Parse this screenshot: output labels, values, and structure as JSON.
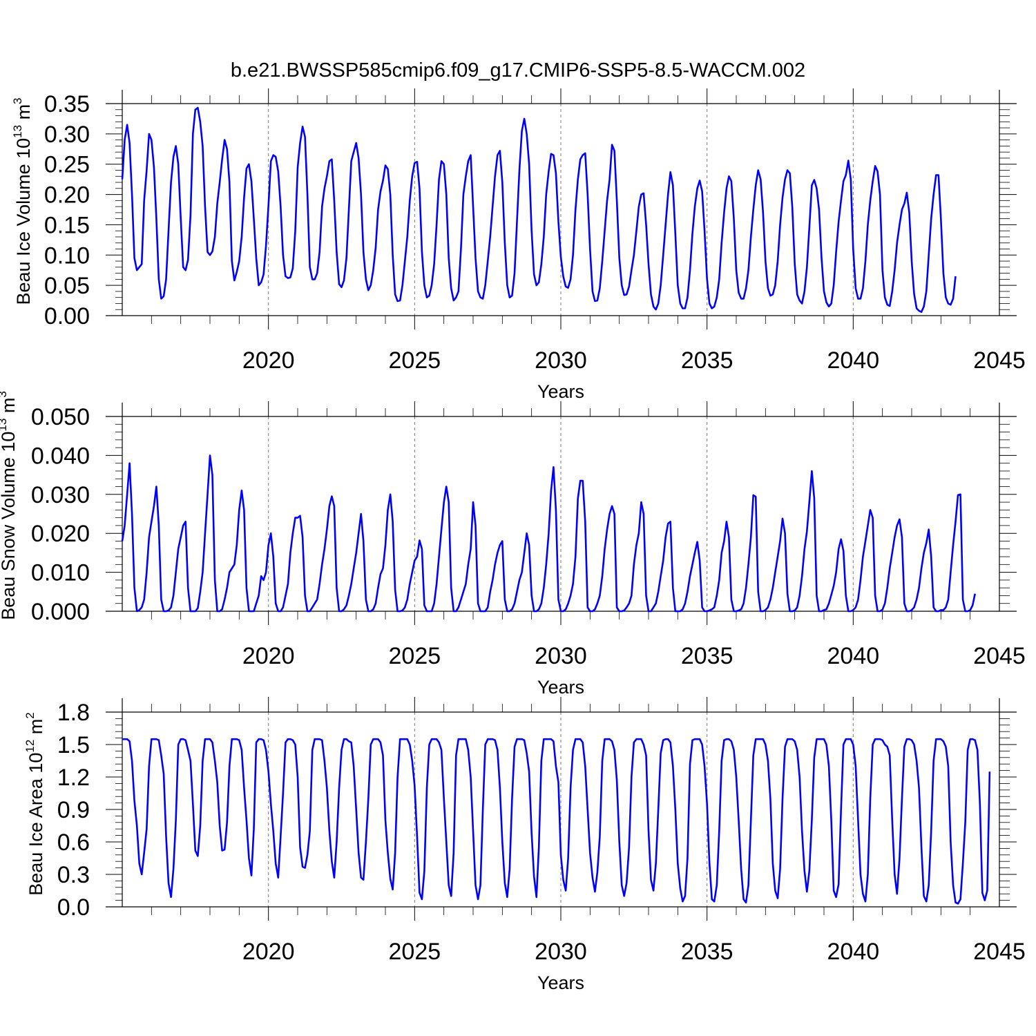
{
  "title": "b.e21.BWSSP585cmip6.f09_g17.CMIP6-SSP5-8.5-WACCM.002",
  "chart_data": [
    {
      "type": "line",
      "id": "ice-volume",
      "title": "",
      "xlabel": "Years",
      "ylabel": {
        "base": "Beau Ice Volume 10",
        "exp": "13",
        "unit": " m",
        "unit_exp": "3"
      },
      "xlim": [
        2015.0,
        2045.0
      ],
      "ylim": [
        0.0,
        0.35
      ],
      "x_ticks": [
        2020,
        2025,
        2030,
        2035,
        2040,
        2045
      ],
      "y_ticks": [
        "0.00",
        "0.05",
        "0.10",
        "0.15",
        "0.20",
        "0.25",
        "0.30",
        "0.35"
      ],
      "x_start": 2015.0,
      "x_step": 0.0833333,
      "values": [
        0.225,
        0.29,
        0.315,
        0.285,
        0.2,
        0.095,
        0.075,
        0.08,
        0.085,
        0.19,
        0.24,
        0.3,
        0.29,
        0.245,
        0.16,
        0.06,
        0.028,
        0.032,
        0.06,
        0.14,
        0.22,
        0.262,
        0.28,
        0.25,
        0.16,
        0.08,
        0.075,
        0.092,
        0.165,
        0.3,
        0.34,
        0.343,
        0.32,
        0.28,
        0.18,
        0.105,
        0.1,
        0.106,
        0.13,
        0.185,
        0.22,
        0.258,
        0.29,
        0.275,
        0.22,
        0.09,
        0.058,
        0.072,
        0.09,
        0.13,
        0.195,
        0.243,
        0.25,
        0.222,
        0.16,
        0.095,
        0.05,
        0.055,
        0.068,
        0.115,
        0.182,
        0.255,
        0.265,
        0.262,
        0.238,
        0.18,
        0.1,
        0.065,
        0.062,
        0.063,
        0.078,
        0.14,
        0.245,
        0.285,
        0.312,
        0.295,
        0.2,
        0.08,
        0.06,
        0.06,
        0.07,
        0.105,
        0.18,
        0.21,
        0.23,
        0.255,
        0.258,
        0.19,
        0.105,
        0.052,
        0.047,
        0.058,
        0.095,
        0.175,
        0.255,
        0.27,
        0.285,
        0.26,
        0.2,
        0.105,
        0.06,
        0.042,
        0.05,
        0.075,
        0.112,
        0.175,
        0.205,
        0.223,
        0.248,
        0.242,
        0.2,
        0.1,
        0.035,
        0.024,
        0.025,
        0.05,
        0.09,
        0.13,
        0.19,
        0.23,
        0.252,
        0.254,
        0.21,
        0.105,
        0.05,
        0.03,
        0.033,
        0.05,
        0.085,
        0.15,
        0.225,
        0.255,
        0.25,
        0.2,
        0.095,
        0.045,
        0.025,
        0.03,
        0.04,
        0.11,
        0.2,
        0.23,
        0.255,
        0.265,
        0.18,
        0.095,
        0.04,
        0.03,
        0.028,
        0.05,
        0.09,
        0.13,
        0.18,
        0.23,
        0.265,
        0.272,
        0.22,
        0.12,
        0.05,
        0.03,
        0.033,
        0.07,
        0.155,
        0.24,
        0.305,
        0.325,
        0.3,
        0.25,
        0.14,
        0.068,
        0.05,
        0.055,
        0.085,
        0.13,
        0.2,
        0.238,
        0.267,
        0.265,
        0.235,
        0.155,
        0.097,
        0.065,
        0.048,
        0.046,
        0.06,
        0.1,
        0.175,
        0.225,
        0.258,
        0.265,
        0.268,
        0.2,
        0.11,
        0.04,
        0.024,
        0.025,
        0.045,
        0.09,
        0.14,
        0.19,
        0.225,
        0.282,
        0.272,
        0.19,
        0.095,
        0.05,
        0.034,
        0.035,
        0.048,
        0.075,
        0.1,
        0.14,
        0.18,
        0.2,
        0.202,
        0.15,
        0.085,
        0.035,
        0.015,
        0.01,
        0.02,
        0.05,
        0.1,
        0.15,
        0.2,
        0.237,
        0.215,
        0.135,
        0.05,
        0.02,
        0.012,
        0.012,
        0.03,
        0.075,
        0.135,
        0.18,
        0.21,
        0.223,
        0.205,
        0.14,
        0.06,
        0.02,
        0.012,
        0.015,
        0.03,
        0.06,
        0.12,
        0.17,
        0.21,
        0.23,
        0.222,
        0.16,
        0.075,
        0.038,
        0.028,
        0.028,
        0.045,
        0.075,
        0.13,
        0.175,
        0.215,
        0.24,
        0.225,
        0.17,
        0.09,
        0.045,
        0.033,
        0.035,
        0.05,
        0.09,
        0.15,
        0.195,
        0.225,
        0.24,
        0.235,
        0.18,
        0.085,
        0.035,
        0.025,
        0.02,
        0.04,
        0.08,
        0.145,
        0.215,
        0.224,
        0.21,
        0.175,
        0.095,
        0.04,
        0.022,
        0.015,
        0.02,
        0.05,
        0.105,
        0.155,
        0.19,
        0.222,
        0.232,
        0.256,
        0.225,
        0.11,
        0.045,
        0.028,
        0.028,
        0.045,
        0.09,
        0.15,
        0.19,
        0.222,
        0.247,
        0.238,
        0.2,
        0.075,
        0.03,
        0.018,
        0.016,
        0.04,
        0.075,
        0.12,
        0.15,
        0.175,
        0.185,
        0.203,
        0.17,
        0.09,
        0.036,
        0.012,
        0.008,
        0.006,
        0.015,
        0.04,
        0.1,
        0.16,
        0.2,
        0.232,
        0.232,
        0.16,
        0.07,
        0.03,
        0.02,
        0.018,
        0.028,
        0.065
      ]
    },
    {
      "type": "line",
      "id": "snow-volume",
      "title": "",
      "xlabel": "Years",
      "ylabel": {
        "base": "Beau Snow Volume 10",
        "exp": "13",
        "unit": " m",
        "unit_exp": "3"
      },
      "xlim": [
        2015.0,
        2045.0
      ],
      "ylim": [
        0.0,
        0.05
      ],
      "x_ticks": [
        2020,
        2025,
        2030,
        2035,
        2040,
        2045
      ],
      "y_ticks": [
        "0.000",
        "0.010",
        "0.020",
        "0.030",
        "0.040",
        "0.050"
      ],
      "x_start": 2015.0,
      "x_step": 0.0833333,
      "values": [
        0.018,
        0.022,
        0.03,
        0.038,
        0.025,
        0.006,
        0.0,
        0.0003,
        0.001,
        0.003,
        0.01,
        0.019,
        0.023,
        0.027,
        0.032,
        0.022,
        0.003,
        0.0,
        0.0,
        0.0002,
        0.001,
        0.004,
        0.01,
        0.016,
        0.019,
        0.022,
        0.023,
        0.006,
        0.0,
        0.0,
        0.0,
        0.0008,
        0.005,
        0.01,
        0.02,
        0.03,
        0.04,
        0.035,
        0.008,
        0.0,
        0.0,
        0.0005,
        0.003,
        0.006,
        0.01,
        0.011,
        0.012,
        0.017,
        0.026,
        0.031,
        0.026,
        0.006,
        0.0,
        0.0,
        0.0,
        0.002,
        0.004,
        0.009,
        0.008,
        0.01,
        0.017,
        0.02,
        0.014,
        0.002,
        0.0,
        0.0,
        0.001,
        0.004,
        0.007,
        0.015,
        0.02,
        0.024,
        0.024,
        0.0245,
        0.019,
        0.004,
        0.0,
        0.0,
        0.001,
        0.002,
        0.003,
        0.007,
        0.012,
        0.016,
        0.021,
        0.027,
        0.0295,
        0.027,
        0.006,
        0.0,
        0.0,
        0.0005,
        0.0015,
        0.004,
        0.007,
        0.011,
        0.015,
        0.02,
        0.025,
        0.018,
        0.003,
        0.0,
        0.0,
        0.0005,
        0.002,
        0.006,
        0.0095,
        0.011,
        0.017,
        0.026,
        0.03,
        0.023,
        0.0055,
        0.0,
        0.0,
        0.0002,
        0.001,
        0.003,
        0.007,
        0.01,
        0.013,
        0.014,
        0.0182,
        0.016,
        0.0015,
        0.0,
        0.0,
        0.0,
        0.002,
        0.007,
        0.014,
        0.021,
        0.028,
        0.032,
        0.028,
        0.006,
        0.0,
        0.0,
        0.001,
        0.003,
        0.005,
        0.007,
        0.012,
        0.016,
        0.028,
        0.022,
        0.002,
        0.0,
        0.0,
        0.0,
        0.001,
        0.005,
        0.008,
        0.012,
        0.015,
        0.017,
        0.018,
        0.003,
        0.0,
        0.0,
        0.0005,
        0.002,
        0.005,
        0.008,
        0.01,
        0.015,
        0.02,
        0.017,
        0.004,
        0.0,
        0.0,
        0.0005,
        0.002,
        0.006,
        0.012,
        0.02,
        0.031,
        0.037,
        0.026,
        0.003,
        0.0,
        0.0,
        0.0005,
        0.002,
        0.004,
        0.007,
        0.014,
        0.029,
        0.0335,
        0.0335,
        0.023,
        0.001,
        0.0,
        0.0,
        0.0005,
        0.002,
        0.004,
        0.009,
        0.016,
        0.021,
        0.025,
        0.027,
        0.025,
        0.001,
        0.0,
        0.0,
        0.0002,
        0.001,
        0.002,
        0.004,
        0.012,
        0.017,
        0.02,
        0.028,
        0.025,
        0.004,
        0.0,
        0.0,
        0.001,
        0.002,
        0.005,
        0.009,
        0.013,
        0.019,
        0.0225,
        0.023,
        0.006,
        0.0,
        0.0,
        0.0,
        0.0005,
        0.002,
        0.005,
        0.009,
        0.012,
        0.015,
        0.0178,
        0.013,
        0.001,
        0.0,
        0.0,
        0.0002,
        0.0005,
        0.001,
        0.004,
        0.008,
        0.015,
        0.018,
        0.023,
        0.019,
        0.003,
        0.0,
        0.0,
        0.0002,
        0.0005,
        0.002,
        0.006,
        0.012,
        0.019,
        0.0298,
        0.0294,
        0.005,
        0.0,
        0.0,
        0.0003,
        0.001,
        0.003,
        0.006,
        0.01,
        0.014,
        0.018,
        0.0238,
        0.02,
        0.0045,
        0.0,
        0.0,
        0.0002,
        0.001,
        0.004,
        0.009,
        0.016,
        0.0205,
        0.028,
        0.036,
        0.029,
        0.004,
        0.0,
        0.0,
        0.0003,
        0.0005,
        0.002,
        0.0042,
        0.0065,
        0.01,
        0.016,
        0.0185,
        0.0155,
        0.004,
        0.0,
        0.0,
        0.0003,
        0.001,
        0.003,
        0.008,
        0.014,
        0.018,
        0.022,
        0.026,
        0.024,
        0.004,
        0.0,
        0.0,
        0.0004,
        0.002,
        0.006,
        0.011,
        0.015,
        0.019,
        0.022,
        0.0236,
        0.019,
        0.002,
        0.0,
        0.0,
        0.0003,
        0.001,
        0.003,
        0.006,
        0.011,
        0.015,
        0.0175,
        0.021,
        0.014,
        0.001,
        0.0,
        0.0,
        0.0003,
        0.0003,
        0.001,
        0.003,
        0.01,
        0.017,
        0.023,
        0.0298,
        0.03,
        0.003,
        0.0,
        0.0,
        0.0003,
        0.0015,
        0.0045
      ]
    },
    {
      "type": "line",
      "id": "ice-area",
      "title": "",
      "xlabel": "Years",
      "ylabel": {
        "base": "Beau Ice Area 10",
        "exp": "12",
        "unit": " m",
        "unit_exp": "2"
      },
      "xlim": [
        2015.0,
        2045.0
      ],
      "ylim": [
        0.0,
        1.8
      ],
      "x_ticks": [
        2020,
        2025,
        2030,
        2035,
        2040,
        2045
      ],
      "y_ticks": [
        "0.0",
        "0.3",
        "0.6",
        "0.9",
        "1.2",
        "1.5",
        "1.8"
      ],
      "x_start": 2015.0,
      "x_step": 0.0833333,
      "values": [
        1.55,
        1.55,
        1.55,
        1.53,
        1.35,
        0.98,
        0.75,
        0.4,
        0.3,
        0.5,
        0.72,
        1.3,
        1.55,
        1.55,
        1.55,
        1.54,
        1.4,
        1.23,
        0.65,
        0.22,
        0.09,
        0.35,
        0.8,
        1.5,
        1.55,
        1.55,
        1.54,
        1.45,
        1.35,
        0.95,
        0.52,
        0.47,
        0.75,
        1.35,
        1.55,
        1.55,
        1.55,
        1.52,
        1.35,
        1.15,
        0.75,
        0.52,
        0.53,
        0.78,
        1.3,
        1.55,
        1.55,
        1.55,
        1.54,
        1.45,
        1.1,
        0.8,
        0.45,
        0.29,
        0.72,
        1.52,
        1.55,
        1.55,
        1.54,
        1.45,
        1.25,
        0.95,
        0.7,
        0.4,
        0.27,
        0.65,
        1.05,
        1.52,
        1.55,
        1.55,
        1.54,
        1.5,
        1.2,
        0.55,
        0.37,
        0.36,
        0.48,
        0.7,
        1.45,
        1.55,
        1.55,
        1.55,
        1.54,
        1.35,
        1.1,
        0.7,
        0.42,
        0.27,
        0.6,
        1.1,
        1.45,
        1.55,
        1.55,
        1.53,
        1.52,
        1.3,
        0.9,
        0.5,
        0.27,
        0.25,
        0.6,
        1.0,
        1.5,
        1.55,
        1.55,
        1.55,
        1.52,
        1.4,
        0.8,
        0.5,
        0.26,
        0.16,
        0.5,
        1.2,
        1.55,
        1.55,
        1.55,
        1.55,
        1.5,
        1.35,
        1.12,
        0.65,
        0.13,
        0.07,
        0.33,
        1.1,
        1.5,
        1.55,
        1.55,
        1.55,
        1.52,
        1.45,
        1.0,
        0.6,
        0.2,
        0.1,
        0.5,
        1.4,
        1.55,
        1.55,
        1.55,
        1.55,
        1.45,
        1.2,
        0.7,
        0.2,
        0.07,
        0.2,
        0.9,
        1.5,
        1.55,
        1.55,
        1.55,
        1.54,
        1.45,
        1.1,
        0.6,
        0.22,
        0.09,
        0.35,
        1.0,
        1.48,
        1.55,
        1.55,
        1.55,
        1.54,
        1.42,
        1.25,
        0.68,
        0.28,
        0.09,
        0.55,
        1.35,
        1.55,
        1.55,
        1.55,
        1.55,
        1.53,
        1.3,
        1.15,
        0.48,
        0.25,
        0.15,
        0.45,
        1.1,
        1.45,
        1.55,
        1.55,
        1.55,
        1.52,
        1.3,
        0.9,
        0.5,
        0.27,
        0.14,
        0.32,
        0.65,
        1.35,
        1.55,
        1.55,
        1.55,
        1.53,
        1.45,
        1.17,
        0.6,
        0.2,
        0.1,
        0.22,
        0.55,
        1.2,
        1.52,
        1.55,
        1.55,
        1.55,
        1.5,
        1.4,
        0.7,
        0.25,
        0.15,
        0.4,
        0.9,
        1.42,
        1.54,
        1.55,
        1.55,
        1.52,
        1.3,
        0.9,
        0.4,
        0.17,
        0.05,
        0.1,
        0.45,
        1.32,
        1.54,
        1.55,
        1.55,
        1.55,
        1.5,
        1.3,
        0.95,
        0.4,
        0.07,
        0.05,
        0.2,
        0.7,
        1.35,
        1.54,
        1.55,
        1.55,
        1.53,
        1.45,
        1.2,
        0.8,
        0.35,
        0.07,
        0.04,
        0.2,
        0.8,
        1.4,
        1.55,
        1.55,
        1.55,
        1.55,
        1.5,
        1.35,
        1.0,
        0.4,
        0.15,
        0.08,
        0.35,
        1.0,
        1.48,
        1.55,
        1.55,
        1.55,
        1.53,
        1.45,
        1.2,
        0.7,
        0.33,
        0.14,
        0.33,
        0.8,
        1.38,
        1.55,
        1.55,
        1.55,
        1.55,
        1.5,
        1.3,
        0.8,
        0.15,
        0.09,
        0.21,
        0.9,
        1.5,
        1.55,
        1.55,
        1.55,
        1.5,
        1.3,
        0.8,
        0.3,
        0.12,
        0.05,
        0.3,
        1.0,
        1.5,
        1.55,
        1.55,
        1.55,
        1.54,
        1.5,
        1.48,
        1.4,
        0.8,
        0.3,
        0.12,
        0.45,
        1.0,
        1.48,
        1.55,
        1.55,
        1.54,
        1.5,
        1.35,
        1.1,
        0.55,
        0.1,
        0.05,
        0.2,
        0.7,
        1.35,
        1.55,
        1.55,
        1.55,
        1.53,
        1.48,
        1.3,
        0.6,
        0.2,
        0.04,
        0.03,
        0.07,
        0.4,
        0.78,
        1.45,
        1.55,
        1.55,
        1.54,
        1.45,
        0.95,
        0.13,
        0.06,
        0.15,
        1.25
      ]
    }
  ]
}
